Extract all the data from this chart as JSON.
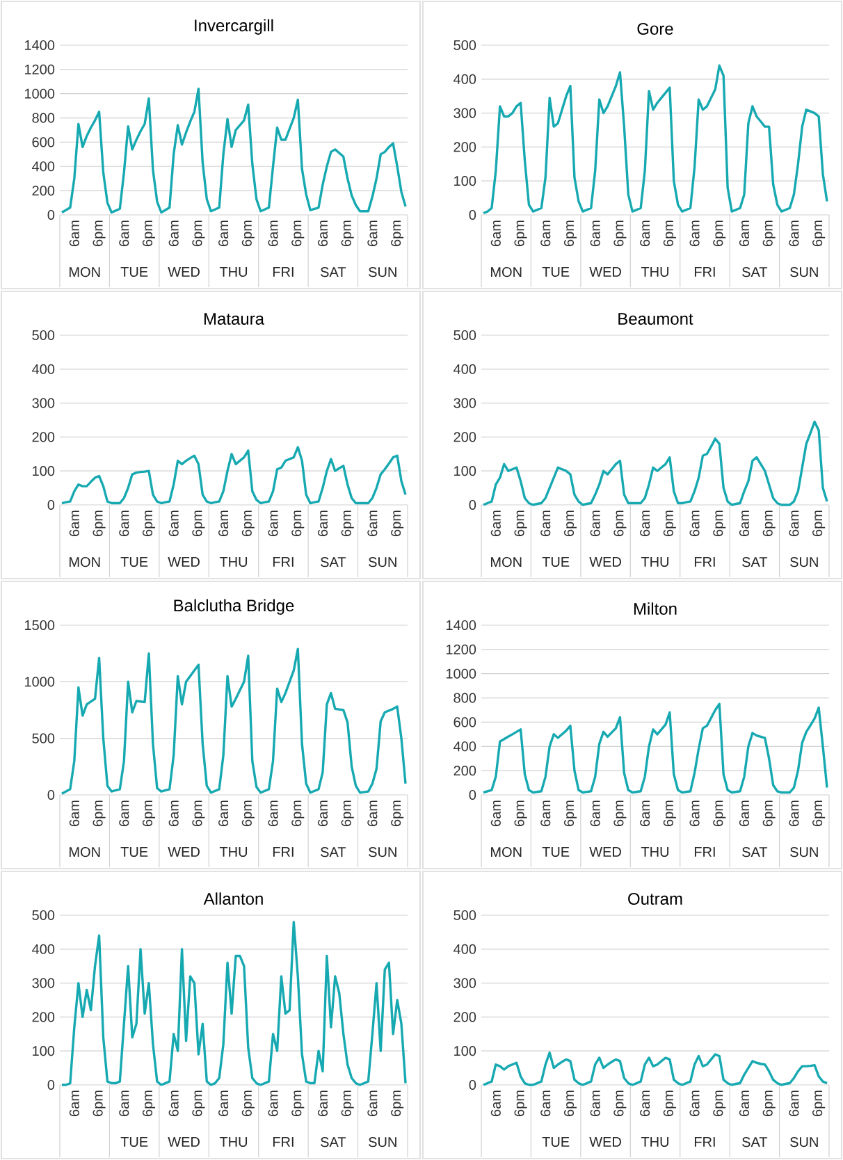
{
  "chart_data": [
    {
      "type": "line",
      "title": "Invercargill",
      "color": "#17a9b1",
      "grid": "y",
      "ylim": [
        0,
        1400
      ],
      "yticks": [
        0,
        200,
        400,
        600,
        800,
        1000,
        1200,
        1400
      ],
      "categories": [
        null,
        null,
        null,
        "6am",
        null,
        null,
        null,
        null,
        null,
        "6pm",
        null,
        null,
        null,
        null,
        null,
        "6am",
        null,
        null,
        null,
        null,
        null,
        "6pm",
        null,
        null,
        null,
        null,
        null,
        "6am",
        null,
        null,
        null,
        null,
        null,
        "6pm",
        null,
        null,
        null,
        null,
        null,
        "6am",
        null,
        null,
        null,
        null,
        null,
        "6pm",
        null,
        null,
        null,
        null,
        null,
        "6am",
        null,
        null,
        null,
        null,
        null,
        "6pm",
        null,
        null,
        null,
        null,
        null,
        "6am",
        null,
        null,
        null,
        null,
        null,
        "6pm",
        null,
        null,
        null,
        null,
        null,
        "6am",
        null,
        null,
        null,
        null,
        null,
        "6pm",
        null,
        null
      ],
      "annotations": [
        "MON",
        "TUE",
        "WED",
        "THU",
        "FRI",
        "SAT",
        "SUN"
      ],
      "values": [
        20,
        40,
        60,
        300,
        750,
        560,
        650,
        720,
        780,
        850,
        350,
        100,
        20,
        35,
        50,
        350,
        730,
        540,
        620,
        690,
        750,
        960,
        370,
        110,
        20,
        40,
        60,
        500,
        740,
        580,
        680,
        770,
        850,
        1040,
        430,
        130,
        30,
        45,
        60,
        500,
        790,
        560,
        700,
        740,
        780,
        910,
        420,
        130,
        30,
        45,
        60,
        400,
        720,
        620,
        620,
        710,
        800,
        950,
        380,
        170,
        40,
        50,
        60,
        250,
        400,
        520,
        540,
        510,
        480,
        300,
        160,
        80,
        30,
        30,
        30,
        150,
        300,
        500,
        520,
        560,
        590,
        400,
        190,
        70
      ]
    },
    {
      "type": "line",
      "title": "Gore",
      "color": "#17a9b1",
      "grid": "y",
      "ylim": [
        0,
        500
      ],
      "yticks": [
        0,
        100,
        200,
        300,
        400,
        500
      ],
      "categories": [
        null,
        null,
        null,
        "6am",
        null,
        null,
        null,
        null,
        null,
        "6pm",
        null,
        null,
        null,
        null,
        null,
        "6am",
        null,
        null,
        null,
        null,
        null,
        "6pm",
        null,
        null,
        null,
        null,
        null,
        "6am",
        null,
        null,
        null,
        null,
        null,
        "6pm",
        null,
        null,
        null,
        null,
        null,
        "6am",
        null,
        null,
        null,
        null,
        null,
        "6pm",
        null,
        null,
        null,
        null,
        null,
        "6am",
        null,
        null,
        null,
        null,
        null,
        "6pm",
        null,
        null,
        null,
        null,
        null,
        "6am",
        null,
        null,
        null,
        null,
        null,
        "6pm",
        null,
        null,
        null,
        null,
        null,
        "6am",
        null,
        null,
        null,
        null,
        null,
        "6pm",
        null,
        null
      ],
      "annotations": [
        "MON",
        "TUE",
        "WED",
        "THU",
        "FRI",
        "SAT",
        "SUN"
      ],
      "values": [
        5,
        10,
        20,
        130,
        320,
        290,
        290,
        300,
        320,
        330,
        160,
        30,
        10,
        15,
        20,
        110,
        345,
        260,
        270,
        310,
        350,
        380,
        110,
        40,
        10,
        15,
        20,
        130,
        340,
        300,
        320,
        350,
        380,
        420,
        260,
        60,
        10,
        15,
        20,
        130,
        365,
        310,
        330,
        345,
        360,
        375,
        100,
        30,
        10,
        15,
        20,
        140,
        340,
        310,
        320,
        345,
        370,
        440,
        410,
        80,
        10,
        15,
        20,
        60,
        270,
        320,
        290,
        275,
        260,
        260,
        90,
        30,
        10,
        15,
        20,
        60,
        150,
        260,
        310,
        305,
        300,
        290,
        120,
        40
      ]
    },
    {
      "type": "line",
      "title": "Mataura",
      "color": "#17a9b1",
      "grid": "y",
      "ylim": [
        0,
        500
      ],
      "yticks": [
        0,
        100,
        200,
        300,
        400,
        500
      ],
      "categories": [
        null,
        null,
        null,
        "6am",
        null,
        null,
        null,
        null,
        null,
        "6pm",
        null,
        null,
        null,
        null,
        null,
        "6am",
        null,
        null,
        null,
        null,
        null,
        "6pm",
        null,
        null,
        null,
        null,
        null,
        "6am",
        null,
        null,
        null,
        null,
        null,
        "6pm",
        null,
        null,
        null,
        null,
        null,
        "6am",
        null,
        null,
        null,
        null,
        null,
        "6pm",
        null,
        null,
        null,
        null,
        null,
        "6am",
        null,
        null,
        null,
        null,
        null,
        "6pm",
        null,
        null,
        null,
        null,
        null,
        "6am",
        null,
        null,
        null,
        null,
        null,
        "6pm",
        null,
        null,
        null,
        null,
        null,
        "6am",
        null,
        null,
        null,
        null,
        null,
        "6pm",
        null,
        null
      ],
      "annotations": [
        "MON",
        "TUE",
        "WED",
        "THU",
        "FRI",
        "SAT",
        "SUN"
      ],
      "values": [
        5,
        8,
        10,
        40,
        60,
        55,
        55,
        68,
        80,
        85,
        55,
        10,
        5,
        5,
        5,
        20,
        50,
        90,
        95,
        97,
        98,
        100,
        30,
        10,
        5,
        8,
        10,
        60,
        130,
        120,
        130,
        138,
        145,
        120,
        30,
        10,
        5,
        8,
        10,
        40,
        100,
        150,
        120,
        130,
        140,
        160,
        40,
        15,
        5,
        8,
        10,
        40,
        105,
        110,
        130,
        135,
        140,
        170,
        130,
        30,
        5,
        8,
        10,
        50,
        100,
        135,
        100,
        108,
        115,
        60,
        20,
        5,
        5,
        5,
        5,
        20,
        50,
        90,
        105,
        122,
        140,
        145,
        70,
        30
      ]
    },
    {
      "type": "line",
      "title": "Beaumont",
      "color": "#17a9b1",
      "grid": "y",
      "ylim": [
        0,
        500
      ],
      "yticks": [
        0,
        100,
        200,
        300,
        400,
        500
      ],
      "categories": [
        null,
        null,
        null,
        "6am",
        null,
        null,
        null,
        null,
        null,
        "6pm",
        null,
        null,
        null,
        null,
        null,
        "6am",
        null,
        null,
        null,
        null,
        null,
        "6pm",
        null,
        null,
        null,
        null,
        null,
        "6am",
        null,
        null,
        null,
        null,
        null,
        "6pm",
        null,
        null,
        null,
        null,
        null,
        "6am",
        null,
        null,
        null,
        null,
        null,
        "6pm",
        null,
        null,
        null,
        null,
        null,
        "6am",
        null,
        null,
        null,
        null,
        null,
        "6pm",
        null,
        null,
        null,
        null,
        null,
        "6am",
        null,
        null,
        null,
        null,
        null,
        "6pm",
        null,
        null,
        null,
        null,
        null,
        "6am",
        null,
        null,
        null,
        null,
        null,
        "6pm",
        null,
        null
      ],
      "annotations": [
        "MON",
        "TUE",
        "WED",
        "THU",
        "FRI",
        "SAT",
        "SUN"
      ],
      "values": [
        0,
        5,
        10,
        60,
        80,
        120,
        100,
        105,
        110,
        70,
        20,
        5,
        0,
        3,
        5,
        20,
        50,
        80,
        110,
        105,
        100,
        90,
        30,
        10,
        0,
        3,
        5,
        30,
        60,
        100,
        90,
        105,
        120,
        130,
        30,
        5,
        5,
        5,
        5,
        20,
        60,
        110,
        100,
        110,
        120,
        140,
        40,
        5,
        5,
        8,
        10,
        40,
        80,
        145,
        150,
        172,
        195,
        180,
        50,
        10,
        0,
        3,
        5,
        40,
        70,
        130,
        140,
        120,
        100,
        60,
        20,
        5,
        0,
        0,
        0,
        10,
        40,
        110,
        180,
        212,
        245,
        220,
        50,
        10
      ]
    },
    {
      "type": "line",
      "title": "Balclutha Bridge",
      "color": "#17a9b1",
      "grid": "y",
      "ylim": [
        0,
        1500
      ],
      "yticks": [
        0,
        500,
        1000,
        1500
      ],
      "categories": [
        null,
        null,
        null,
        "6am",
        null,
        null,
        null,
        null,
        null,
        "6pm",
        null,
        null,
        null,
        null,
        null,
        "6am",
        null,
        null,
        null,
        null,
        null,
        "6pm",
        null,
        null,
        null,
        null,
        null,
        "6am",
        null,
        null,
        null,
        null,
        null,
        "6pm",
        null,
        null,
        null,
        null,
        null,
        "6am",
        null,
        null,
        null,
        null,
        null,
        "6pm",
        null,
        null,
        null,
        null,
        null,
        "6am",
        null,
        null,
        null,
        null,
        null,
        "6pm",
        null,
        null,
        null,
        null,
        null,
        "6am",
        null,
        null,
        null,
        null,
        null,
        "6pm",
        null,
        null,
        null,
        null,
        null,
        "6am",
        null,
        null,
        null,
        null,
        null,
        "6pm",
        null,
        null
      ],
      "annotations": [
        "MON",
        "TUE",
        "WED",
        "THU",
        "FRI",
        "SAT",
        "SUN"
      ],
      "values": [
        10,
        30,
        50,
        300,
        950,
        700,
        800,
        825,
        850,
        1210,
        500,
        80,
        30,
        40,
        50,
        300,
        1000,
        730,
        830,
        825,
        820,
        1250,
        450,
        60,
        30,
        40,
        50,
        350,
        1050,
        800,
        1000,
        1050,
        1100,
        1150,
        450,
        80,
        20,
        35,
        50,
        350,
        1050,
        780,
        850,
        925,
        1000,
        1230,
        300,
        70,
        20,
        35,
        50,
        300,
        940,
        820,
        900,
        1000,
        1100,
        1290,
        450,
        100,
        20,
        35,
        50,
        200,
        800,
        900,
        760,
        755,
        750,
        640,
        250,
        80,
        20,
        25,
        30,
        100,
        230,
        650,
        730,
        745,
        760,
        780,
        500,
        100
      ]
    },
    {
      "type": "line",
      "title": "Milton",
      "color": "#17a9b1",
      "grid": "y",
      "ylim": [
        0,
        1400
      ],
      "yticks": [
        0,
        200,
        400,
        600,
        800,
        1000,
        1200,
        1400
      ],
      "categories": [
        null,
        null,
        null,
        "6am",
        null,
        null,
        null,
        null,
        null,
        "6pm",
        null,
        null,
        null,
        null,
        null,
        "6am",
        null,
        null,
        null,
        null,
        null,
        "6pm",
        null,
        null,
        null,
        null,
        null,
        "6am",
        null,
        null,
        null,
        null,
        null,
        "6pm",
        null,
        null,
        null,
        null,
        null,
        "6am",
        null,
        null,
        null,
        null,
        null,
        "6pm",
        null,
        null,
        null,
        null,
        null,
        "6am",
        null,
        null,
        null,
        null,
        null,
        "6pm",
        null,
        null,
        null,
        null,
        null,
        "6am",
        null,
        null,
        null,
        null,
        null,
        "6pm",
        null,
        null,
        null,
        null,
        null,
        "6am",
        null,
        null,
        null,
        null,
        null,
        "6pm",
        null,
        null
      ],
      "annotations": [
        "MON",
        "TUE",
        "WED",
        "THU",
        "FRI",
        "SAT",
        "SUN"
      ],
      "values": [
        20,
        30,
        40,
        150,
        440,
        460,
        480,
        500,
        520,
        540,
        170,
        40,
        20,
        25,
        30,
        150,
        400,
        500,
        470,
        500,
        530,
        570,
        200,
        40,
        20,
        25,
        30,
        150,
        420,
        520,
        480,
        515,
        550,
        640,
        180,
        40,
        20,
        25,
        30,
        150,
        400,
        540,
        500,
        540,
        580,
        680,
        170,
        40,
        20,
        25,
        30,
        180,
        380,
        550,
        570,
        635,
        700,
        750,
        170,
        40,
        20,
        25,
        30,
        150,
        400,
        510,
        490,
        480,
        470,
        300,
        80,
        30,
        20,
        20,
        20,
        60,
        200,
        430,
        520,
        575,
        630,
        720,
        400,
        60
      ]
    },
    {
      "type": "line",
      "title": "Allanton",
      "color": "#17a9b1",
      "grid": "y",
      "ylim": [
        0,
        500
      ],
      "yticks": [
        0,
        100,
        200,
        300,
        400,
        500
      ],
      "categories": [
        null,
        null,
        null,
        "6am",
        null,
        null,
        null,
        null,
        null,
        "6pm",
        null,
        null,
        null,
        null,
        null,
        "6am",
        null,
        null,
        null,
        null,
        null,
        "6pm",
        null,
        null,
        null,
        null,
        null,
        "6am",
        null,
        null,
        null,
        null,
        null,
        "6pm",
        null,
        null,
        null,
        null,
        null,
        "6am",
        null,
        null,
        null,
        null,
        null,
        "6pm",
        null,
        null,
        null,
        null,
        null,
        "6am",
        null,
        null,
        null,
        null,
        null,
        "6pm",
        null,
        null,
        null,
        null,
        null,
        "6am",
        null,
        null,
        null,
        null,
        null,
        "6pm",
        null,
        null,
        null,
        null,
        null,
        "6am",
        null,
        null,
        null,
        null,
        null,
        "6pm",
        null,
        null
      ],
      "annotations": [
        "TUE",
        "WED",
        "THU",
        "FRI",
        "SAT",
        "SUN"
      ],
      "values": [
        0,
        0,
        5,
        170,
        300,
        200,
        280,
        220,
        350,
        440,
        140,
        10,
        5,
        5,
        10,
        180,
        350,
        140,
        180,
        400,
        210,
        300,
        120,
        10,
        0,
        5,
        10,
        150,
        100,
        400,
        130,
        320,
        300,
        90,
        180,
        10,
        0,
        5,
        20,
        120,
        360,
        210,
        380,
        380,
        350,
        110,
        20,
        5,
        0,
        5,
        10,
        150,
        100,
        320,
        210,
        220,
        480,
        320,
        90,
        10,
        5,
        5,
        100,
        40,
        380,
        170,
        320,
        270,
        150,
        60,
        20,
        5,
        0,
        5,
        10,
        150,
        300,
        100,
        340,
        360,
        150,
        250,
        180,
        5
      ]
    },
    {
      "type": "line",
      "title": "Outram",
      "color": "#17a9b1",
      "grid": "y",
      "ylim": [
        0,
        500
      ],
      "yticks": [
        0,
        100,
        200,
        300,
        400,
        500
      ],
      "categories": [
        null,
        null,
        null,
        "6am",
        null,
        null,
        null,
        null,
        null,
        "6pm",
        null,
        null,
        null,
        null,
        null,
        "6am",
        null,
        null,
        null,
        null,
        null,
        "6pm",
        null,
        null,
        null,
        null,
        null,
        "6am",
        null,
        null,
        null,
        null,
        null,
        "6pm",
        null,
        null,
        null,
        null,
        null,
        "6am",
        null,
        null,
        null,
        null,
        null,
        "6pm",
        null,
        null,
        null,
        null,
        null,
        "6am",
        null,
        null,
        null,
        null,
        null,
        "6pm",
        null,
        null,
        null,
        null,
        null,
        "6am",
        null,
        null,
        null,
        null,
        null,
        "6pm",
        null,
        null,
        null,
        null,
        null,
        "6am",
        null,
        null,
        null,
        null,
        null,
        "6pm",
        null,
        null
      ],
      "annotations": [
        "TUE",
        "WED",
        "THU",
        "FRI",
        "SAT",
        "SUN"
      ],
      "values": [
        0,
        5,
        10,
        60,
        55,
        45,
        55,
        60,
        65,
        25,
        5,
        0,
        0,
        5,
        10,
        60,
        95,
        50,
        60,
        68,
        75,
        70,
        15,
        5,
        0,
        5,
        10,
        60,
        80,
        50,
        60,
        68,
        75,
        70,
        20,
        5,
        0,
        5,
        10,
        60,
        80,
        55,
        60,
        70,
        80,
        75,
        15,
        5,
        0,
        5,
        10,
        60,
        85,
        55,
        60,
        75,
        90,
        85,
        15,
        5,
        0,
        3,
        5,
        30,
        50,
        70,
        65,
        62,
        60,
        40,
        15,
        5,
        0,
        3,
        5,
        20,
        40,
        55,
        55,
        56,
        58,
        25,
        10,
        5
      ]
    }
  ]
}
